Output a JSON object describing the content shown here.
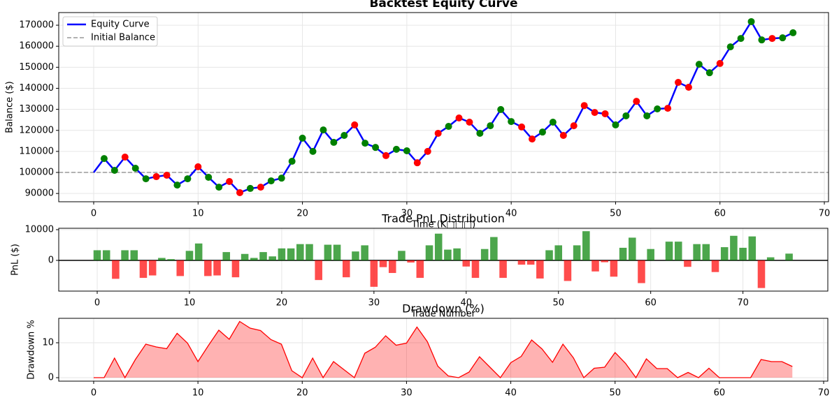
{
  "chart_data": [
    {
      "type": "line",
      "title": "Backtest Equity Curve",
      "xlabel": "Time (K□□□)",
      "ylabel": "Balance ($)",
      "x": [
        0,
        1,
        2,
        3,
        4,
        5,
        6,
        7,
        8,
        9,
        10,
        11,
        12,
        13,
        14,
        15,
        16,
        17,
        18,
        19,
        20,
        21,
        22,
        23,
        24,
        25,
        26,
        27,
        28,
        29,
        30,
        31,
        32,
        33,
        34,
        35,
        36,
        37,
        38,
        39,
        40,
        41,
        42,
        43,
        44,
        45,
        46,
        47,
        48,
        49,
        50,
        51,
        52,
        53,
        54,
        55,
        56,
        57,
        58,
        59,
        60,
        61,
        62,
        63,
        64,
        65,
        66,
        67
      ],
      "series": [
        {
          "name": "Equity Curve",
          "color": "#0000ff",
          "values": [
            100000,
            106600,
            101000,
            107300,
            102000,
            97000,
            98000,
            98700,
            94000,
            97000,
            102700,
            97700,
            93000,
            95700,
            90400,
            92400,
            93000,
            96000,
            97300,
            105300,
            116300,
            110000,
            120200,
            114300,
            117600,
            122600,
            113900,
            111900,
            108000,
            111000,
            110300,
            104600,
            110000,
            118600,
            121900,
            125900,
            123900,
            118600,
            122200,
            129900,
            124200,
            121600,
            115900,
            119200,
            123900,
            117600,
            122200,
            131800,
            128500,
            127900,
            122600,
            126900,
            133800,
            126900,
            130200,
            130500,
            142800,
            140500,
            151400,
            147400,
            151800,
            159700,
            163700,
            171700,
            163000,
            163700,
            164000,
            166400
          ],
          "marker_colors": [
            null,
            "green",
            "green",
            "red",
            "green",
            "green",
            "red",
            "red",
            "green",
            "green",
            "red",
            "green",
            "green",
            "red",
            "red",
            "green",
            "red",
            "green",
            "green",
            "green",
            "green",
            "green",
            "green",
            "green",
            "green",
            "red",
            "green",
            "green",
            "red",
            "green",
            "green",
            "red",
            "red",
            "red",
            "green",
            "red",
            "red",
            "green",
            "green",
            "green",
            "green",
            "red",
            "red",
            "green",
            "green",
            "red",
            "red",
            "red",
            "red",
            "red",
            "green",
            "green",
            "red",
            "green",
            "green",
            "red",
            "red",
            "red",
            "green",
            "green",
            "red",
            "green",
            "green",
            "green",
            "green",
            "red",
            "green",
            "green"
          ]
        }
      ],
      "reference_lines": [
        {
          "name": "Initial Balance",
          "y": 100000,
          "color": "#999999",
          "dashed": true
        }
      ],
      "xlim": [
        -3.35,
        70.4
      ],
      "ylim": [
        86070,
        176000
      ],
      "xticks": [
        0,
        10,
        20,
        30,
        40,
        50,
        60,
        70
      ],
      "yticks": [
        90000,
        100000,
        110000,
        120000,
        130000,
        140000,
        150000,
        160000,
        170000
      ],
      "grid": true,
      "legend": "upper left"
    },
    {
      "type": "bar",
      "title": "Trade PnL Distribution",
      "xlabel": "Trade Number",
      "ylabel": "PnL ($)",
      "x": [
        0,
        1,
        2,
        3,
        4,
        5,
        6,
        7,
        8,
        9,
        10,
        11,
        12,
        13,
        14,
        15,
        16,
        17,
        18,
        19,
        20,
        21,
        22,
        23,
        24,
        25,
        26,
        27,
        28,
        29,
        30,
        31,
        32,
        33,
        34,
        35,
        36,
        37,
        38,
        39,
        40,
        41,
        42,
        43,
        44,
        45,
        46,
        47,
        48,
        49,
        50,
        51,
        52,
        53,
        54,
        55,
        56,
        57,
        58,
        59,
        60,
        61,
        62,
        63,
        64,
        65,
        66,
        67,
        68,
        69,
        70,
        71,
        72,
        73,
        74,
        75
      ],
      "values": [
        3300,
        3300,
        -6000,
        3300,
        3300,
        -5700,
        -4900,
        800,
        400,
        -5100,
        3100,
        5500,
        -5100,
        -4900,
        2700,
        -5500,
        2100,
        800,
        2700,
        1300,
        3900,
        3900,
        5300,
        5300,
        -6400,
        5100,
        5100,
        -5500,
        2900,
        4900,
        -8600,
        -2200,
        -4100,
        3100,
        -700,
        -5700,
        4900,
        8700,
        3500,
        3900,
        -2000,
        -5700,
        3700,
        7600,
        -5700,
        0,
        -1400,
        -1400,
        -5900,
        3300,
        4900,
        -6700,
        4900,
        9500,
        -3600,
        -600,
        -5300,
        4100,
        7400,
        -7400,
        3700,
        0,
        6100,
        6100,
        -2100,
        5300,
        5300,
        -3800,
        4300,
        8000,
        4100,
        7800,
        -9000,
        1000,
        0,
        2200
      ],
      "positive_color": "green",
      "negative_color": "red",
      "reference_lines": [
        {
          "y": 0,
          "color": "#000000",
          "dashed": false
        }
      ],
      "xlim": [
        -4.17,
        79.2
      ],
      "ylim": [
        -10000,
        10450
      ],
      "xticks": [
        0,
        10,
        20,
        30,
        40,
        50,
        60,
        70
      ],
      "yticks": [
        0,
        10000
      ],
      "grid": true
    },
    {
      "type": "area",
      "title": "Drawdown (%)",
      "ylabel": "Drawdown %",
      "x": [
        0,
        1,
        2,
        3,
        4,
        5,
        6,
        7,
        8,
        9,
        10,
        11,
        12,
        13,
        14,
        15,
        16,
        17,
        18,
        19,
        20,
        21,
        22,
        23,
        24,
        25,
        26,
        27,
        28,
        29,
        30,
        31,
        32,
        33,
        34,
        35,
        36,
        37,
        38,
        39,
        40,
        41,
        42,
        43,
        44,
        45,
        46,
        47,
        48,
        49,
        50,
        51,
        52,
        53,
        54,
        55,
        56,
        57,
        58,
        59,
        60,
        61,
        62,
        63,
        64,
        65,
        66,
        67
      ],
      "values": [
        0,
        0,
        5.6,
        0,
        5.2,
        9.6,
        8.8,
        8.3,
        12.7,
        9.9,
        4.6,
        9.2,
        13.6,
        11.0,
        16.1,
        14.2,
        13.5,
        10.9,
        9.6,
        2.0,
        0,
        5.6,
        0,
        4.6,
        2.3,
        0,
        7.0,
        8.7,
        12.0,
        9.3,
        9.9,
        14.5,
        10.3,
        3.3,
        0.5,
        0,
        1.6,
        6.0,
        3.0,
        0,
        4.3,
        6.1,
        10.8,
        8.2,
        4.4,
        9.6,
        5.7,
        0,
        2.7,
        3.0,
        7.2,
        4.1,
        0,
        5.4,
        2.6,
        2.6,
        0,
        1.5,
        0,
        2.7,
        0,
        0,
        0,
        0,
        5.2,
        4.6,
        4.6,
        3.2
      ],
      "color": "red",
      "xlim": [
        -3.35,
        70.4
      ],
      "ylim": [
        -1,
        17
      ],
      "xticks": [
        0,
        10,
        20,
        30,
        40,
        50,
        60,
        70
      ],
      "yticks": [
        0,
        10
      ],
      "grid": true
    }
  ]
}
